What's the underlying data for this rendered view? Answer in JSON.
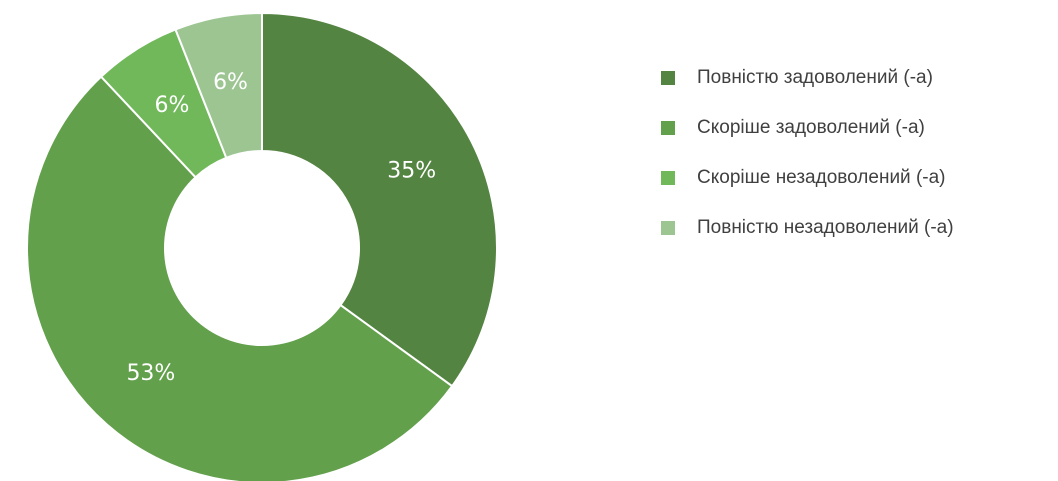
{
  "chart_data": {
    "type": "donut",
    "categories": [
      "Повністю задоволений (-а)",
      "Скоріше задоволений (-а)",
      "Скоріше незадоволений (-а)",
      "Повністю незадоволений (-а)"
    ],
    "values": [
      35,
      53,
      6,
      6
    ],
    "value_labels": [
      "35%",
      "53%",
      "6%",
      "6%"
    ],
    "colors": [
      "#548441",
      "#62a04c",
      "#70b85a",
      "#9cc592"
    ],
    "legend": "right"
  }
}
